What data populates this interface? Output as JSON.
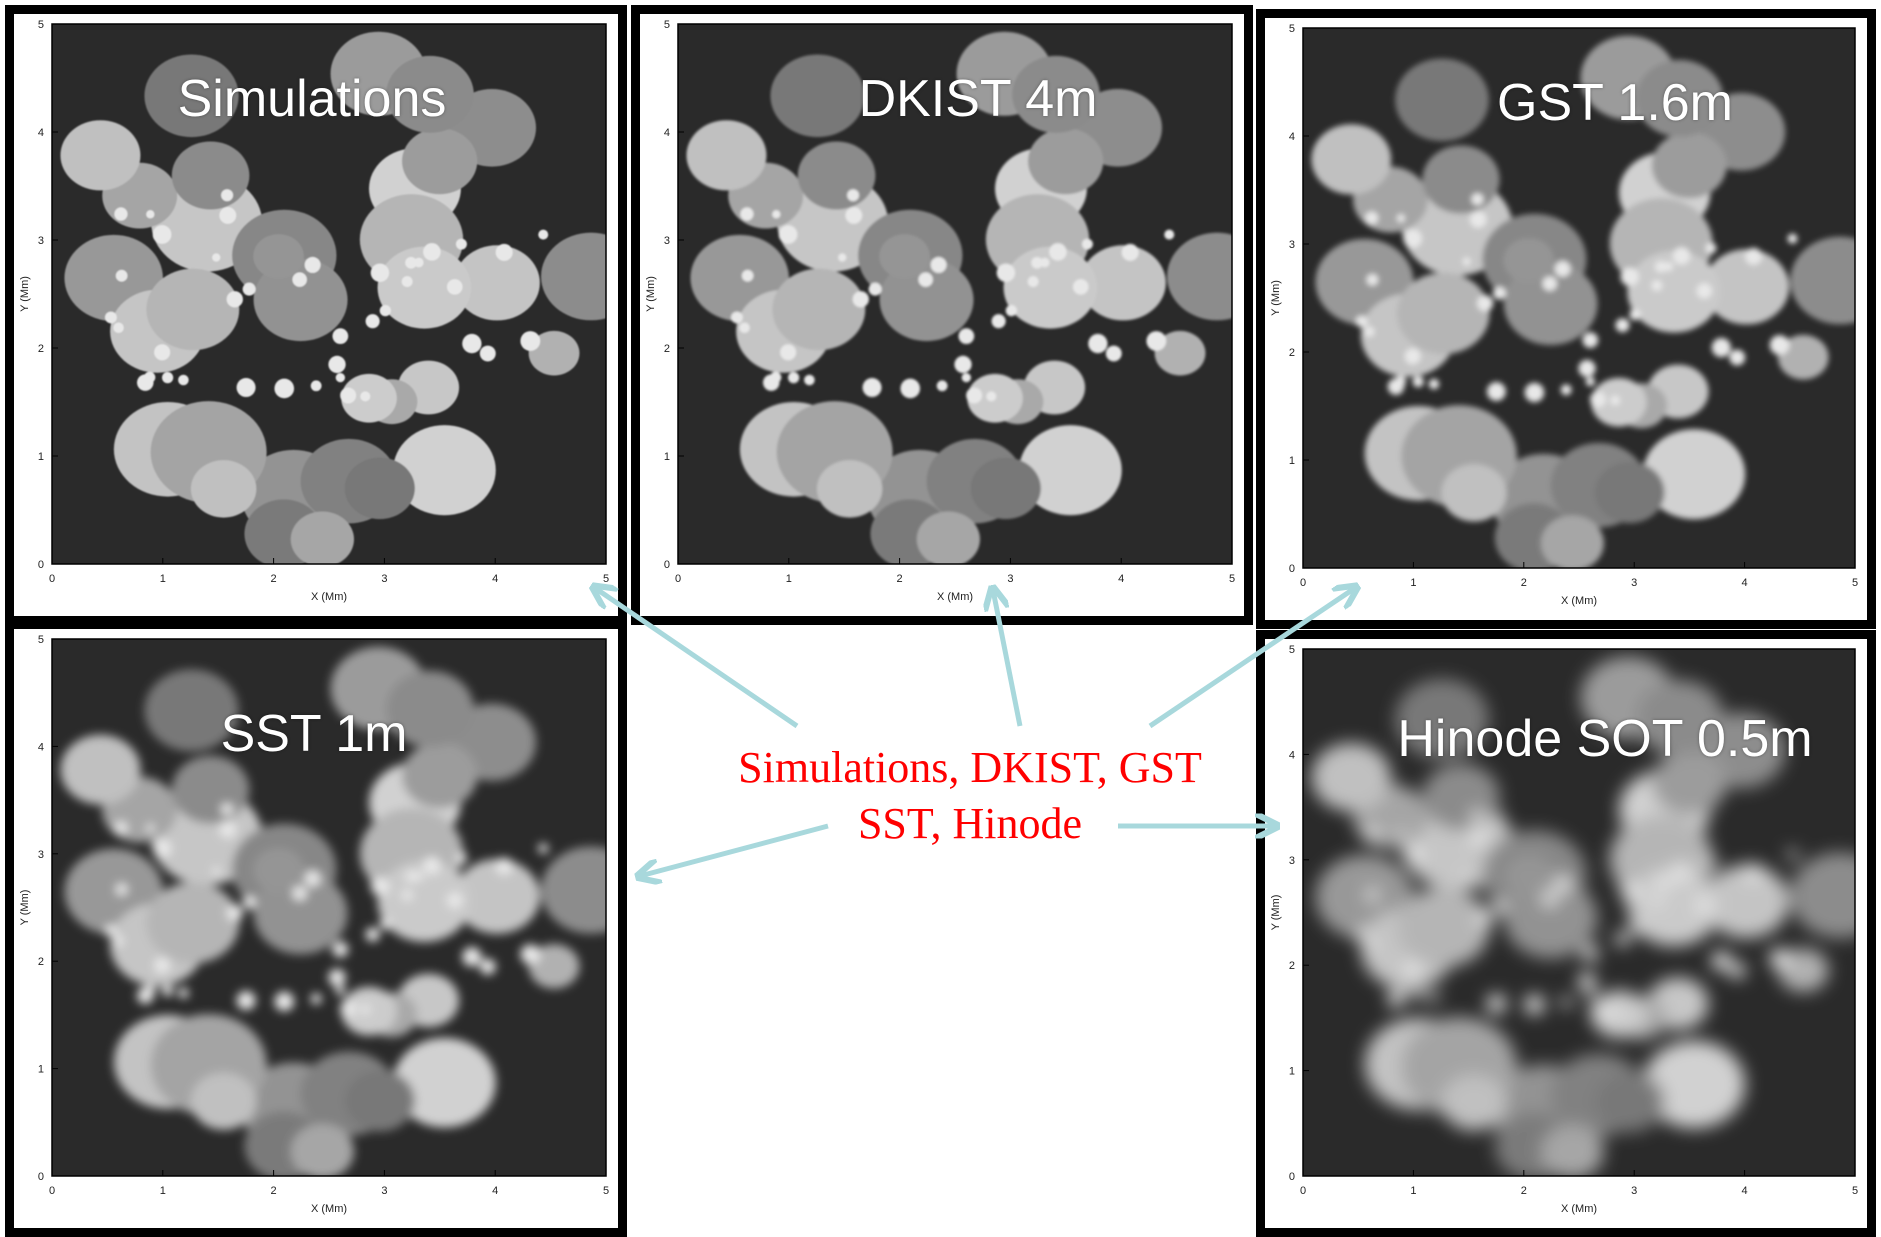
{
  "panels": [
    {
      "id": "simulations",
      "title": "Simulations",
      "blur": 0.9
    },
    {
      "id": "dkist",
      "title": "DKIST 4m",
      "blur": 1.4
    },
    {
      "id": "gst",
      "title": "GST 1.6m",
      "blur": 2.8
    },
    {
      "id": "sst",
      "title": "SST 1m",
      "blur": 4.8
    },
    {
      "id": "hinode",
      "title": "Hinode SOT 0.5m",
      "blur": 8.5
    }
  ],
  "axes": {
    "xlabel": "X (Mm)",
    "ylabel": "Y (Mm)",
    "ticks": [
      "0",
      "1",
      "2",
      "3",
      "4",
      "5"
    ]
  },
  "caption": {
    "line1": "Simulations, DKIST, GST",
    "line2": "SST, Hinode"
  },
  "colors": {
    "caption": "#ff0000",
    "arrow": "#a8d8dc",
    "frame": "#000000",
    "title": "#ffffff"
  }
}
